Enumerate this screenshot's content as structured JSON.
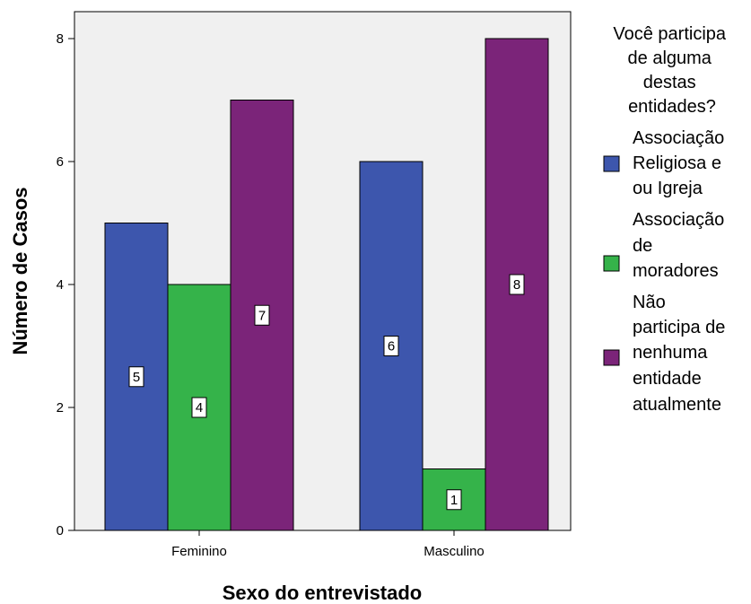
{
  "chart_data": {
    "type": "bar",
    "xlabel": "Sexo do entrevistado",
    "ylabel": "Número de Casos",
    "ylim": [
      0,
      8
    ],
    "yticks": [
      0,
      2,
      4,
      6,
      8
    ],
    "categories": [
      "Feminino",
      "Masculino"
    ],
    "legend_title": "Você participa de alguma destas entidades?",
    "legend_position": "right",
    "grid": false,
    "series": [
      {
        "name": "Associação Religiosa e ou Igreja",
        "color": "#3d56ad",
        "values": [
          5,
          6
        ]
      },
      {
        "name": "Associação de moradores",
        "color": "#35b34a",
        "values": [
          4,
          1
        ]
      },
      {
        "name": "Não participa de nenhuma entidade atualmente",
        "color": "#7b2479",
        "values": [
          7,
          8
        ]
      }
    ],
    "data_labels": [
      [
        "5",
        "6"
      ],
      [
        "4",
        "1"
      ],
      [
        "7",
        "8"
      ]
    ]
  }
}
